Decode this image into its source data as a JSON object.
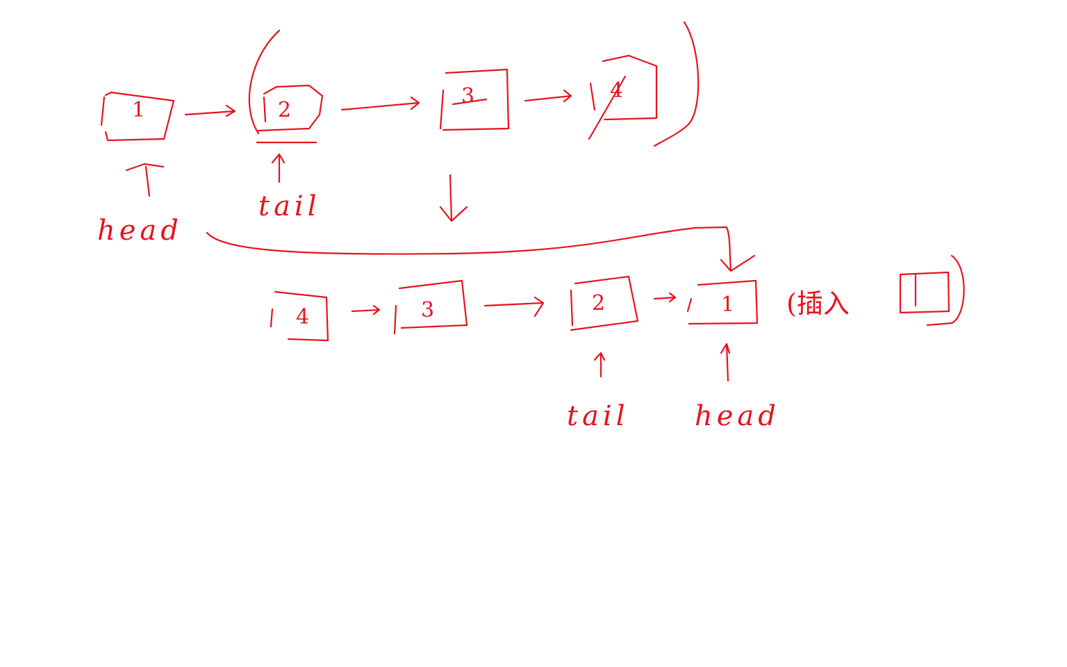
{
  "top": {
    "nodes": [
      "1",
      "2",
      "3",
      "4"
    ],
    "head_label": "head",
    "tail_label": "tail"
  },
  "bottom": {
    "nodes": [
      "4",
      "3",
      "2",
      "1"
    ],
    "tail_label": "tail",
    "head_label": "head"
  },
  "note": {
    "text": "(插入"
  },
  "colors": {
    "ink": "#e8121c",
    "background": "#ffffff"
  }
}
